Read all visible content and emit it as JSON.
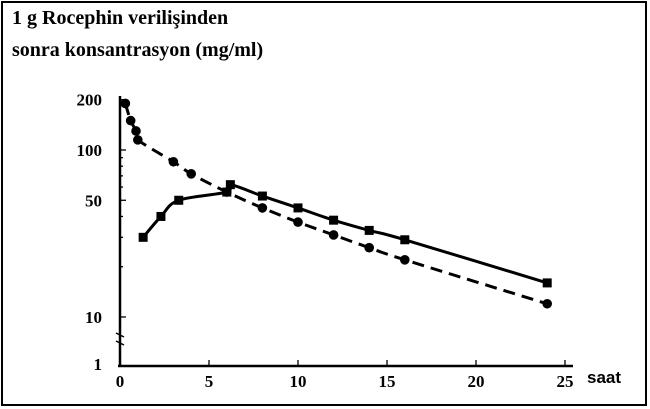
{
  "chart_data": {
    "type": "line",
    "title_line1": "1 g Rocephin verilişinden",
    "title_line2": "sonra konsantrasyon (mg/ml)",
    "xlabel": "saat",
    "ylabel": "",
    "xlim": [
      0,
      25
    ],
    "ylim": [
      1,
      200
    ],
    "yscale": "log",
    "grid": false,
    "xticks": [
      0,
      5,
      10,
      15,
      20,
      25
    ],
    "xtick_labels": [
      "0",
      "5",
      "10",
      "15",
      "20",
      "25"
    ],
    "yticks": [
      1,
      10,
      50,
      100,
      200
    ],
    "ytick_labels": [
      "1",
      "10",
      "50",
      "100",
      "200"
    ],
    "series": [
      {
        "style": "dashed",
        "marker": "circle",
        "color": "#000000",
        "x": [
          0.3,
          0.6,
          0.9,
          1.0,
          3.0,
          4.0,
          6.0,
          8.0,
          10.0,
          12.0,
          14.0,
          16.0,
          24.0
        ],
        "y": [
          190,
          150,
          130,
          115,
          85,
          72,
          56,
          45,
          37,
          31,
          26,
          22,
          12
        ]
      },
      {
        "style": "solid",
        "marker": "square",
        "color": "#000000",
        "x": [
          1.3,
          2.3,
          3.3,
          6.0,
          6.2,
          8.0,
          10.0,
          12.0,
          14.0,
          16.0,
          24.0
        ],
        "y": [
          30,
          40,
          50,
          56,
          62,
          53,
          45,
          38,
          33,
          29,
          16
        ]
      }
    ]
  }
}
